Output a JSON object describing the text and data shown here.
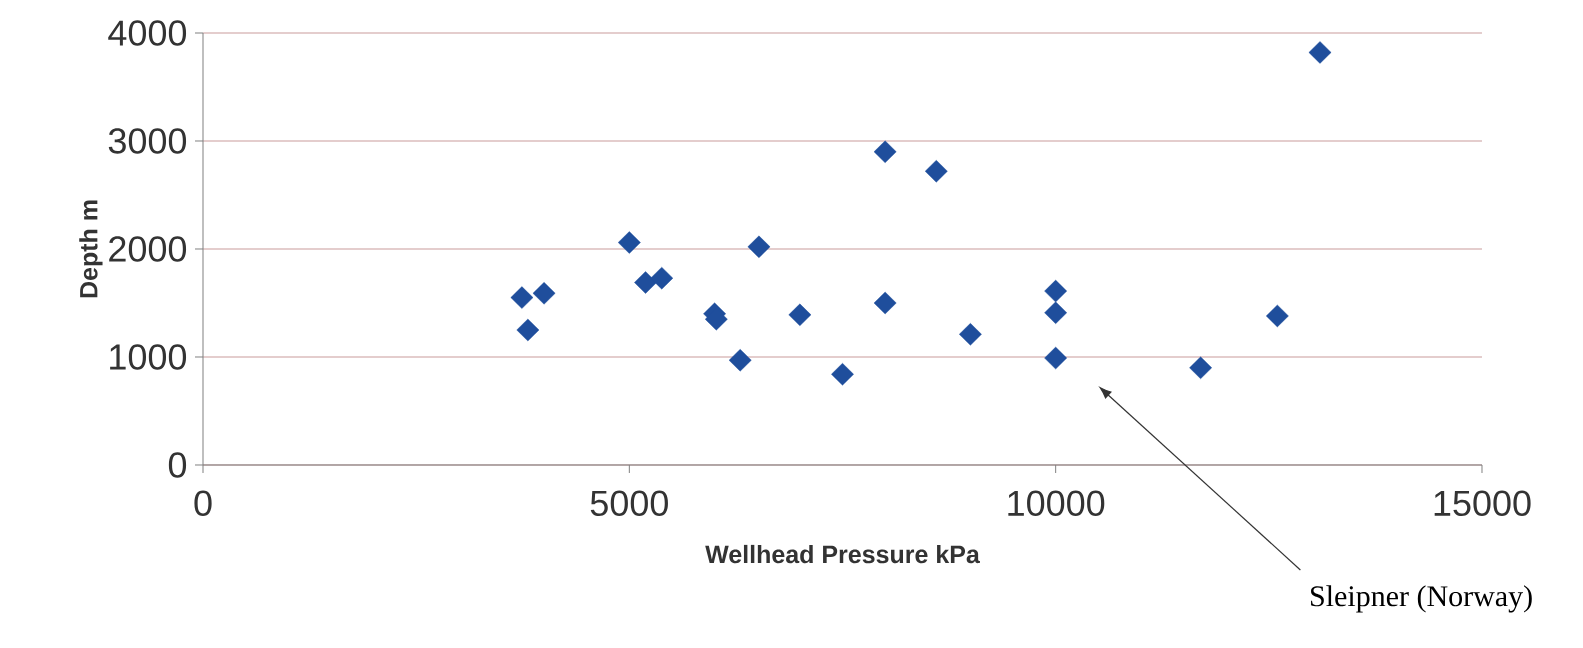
{
  "chart_data": {
    "type": "scatter",
    "xlabel": "Wellhead Pressure kPa",
    "ylabel": "Depth m",
    "x": [
      3740,
      4000,
      3810,
      5000,
      5190,
      5380,
      6000,
      6020,
      6300,
      6520,
      7000,
      7500,
      8000,
      8600,
      8000,
      9000,
      10000,
      10000,
      10000,
      11700,
      12600,
      13100
    ],
    "values": [
      1550,
      1590,
      1250,
      2060,
      1690,
      1730,
      1400,
      1350,
      970,
      2020,
      1390,
      840,
      2900,
      2720,
      1500,
      1210,
      1610,
      1410,
      990,
      900,
      1380,
      3820
    ],
    "color": "#1f4e9c",
    "marker": "diamond",
    "xlim": [
      0,
      15000
    ],
    "ylim": [
      0,
      4000
    ],
    "xticks": [
      0,
      5000,
      10000,
      15000
    ],
    "yticks": [
      0,
      1000,
      2000,
      3000,
      4000
    ],
    "grid": "y",
    "annotations": [
      "Sleipner (Norway)"
    ]
  }
}
